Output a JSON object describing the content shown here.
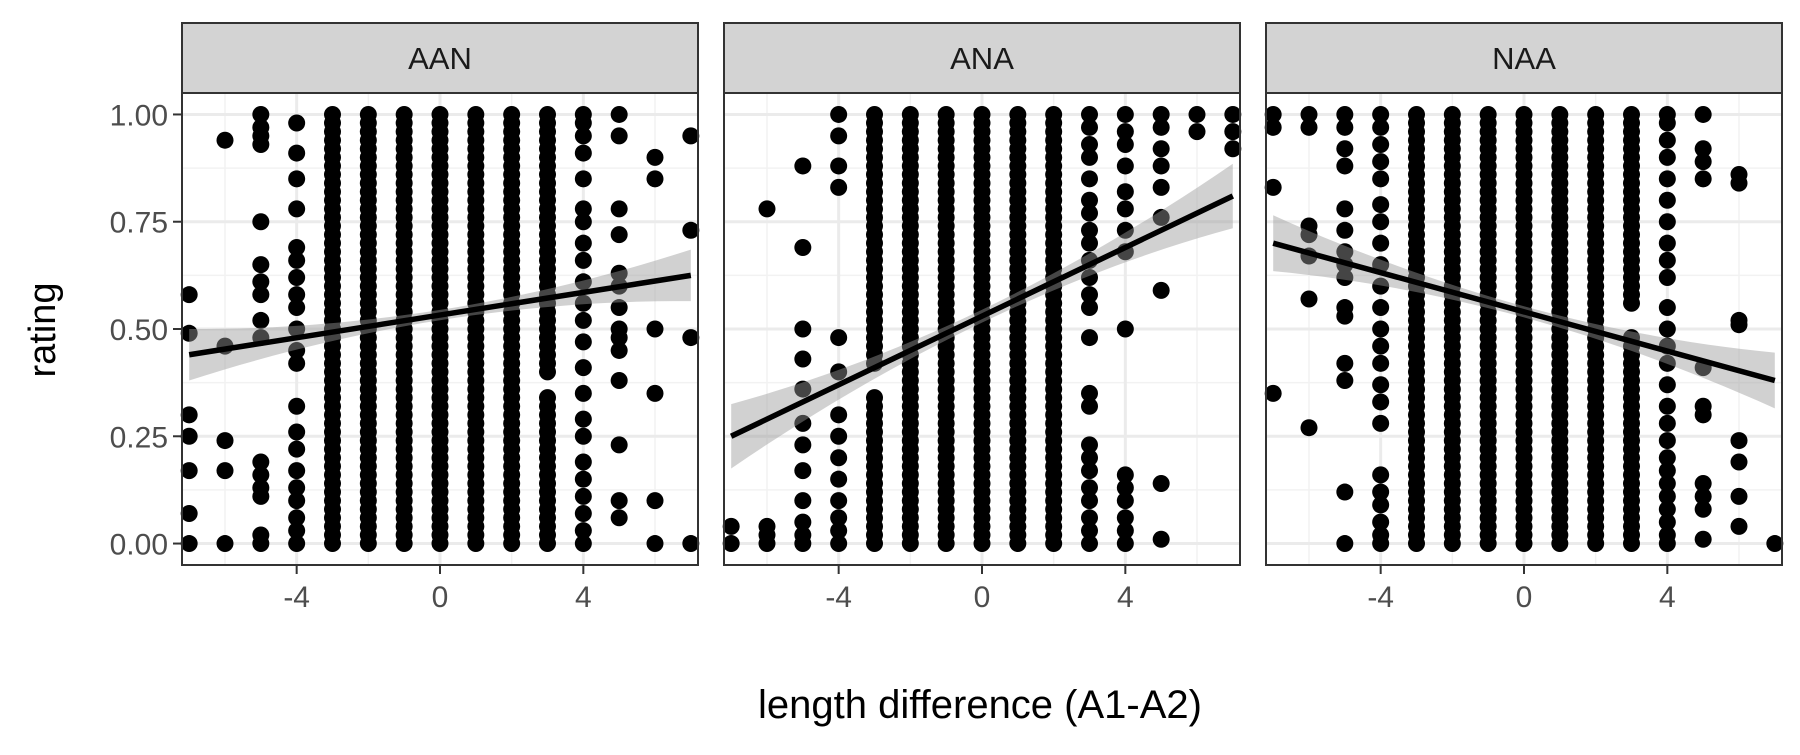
{
  "chart_data": {
    "type": "scatter",
    "facets": [
      "AAN",
      "ANA",
      "NAA"
    ],
    "xlabel": "length difference (A1-A2)",
    "ylabel": "rating",
    "xlim": [
      -7.2,
      7.2
    ],
    "ylim": [
      -0.05,
      1.05
    ],
    "x_ticks": [
      -4,
      0,
      4
    ],
    "x_tick_labels": [
      "-4",
      "0",
      "4"
    ],
    "y_ticks": [
      0,
      0.25,
      0.5,
      0.75,
      1.0
    ],
    "y_tick_labels": [
      "0.00",
      "0.25",
      "0.50",
      "0.75",
      "1.00"
    ],
    "grid": true,
    "point_color": "#000000",
    "line_color": "#000000",
    "ribbon_color": "#9a9a9a",
    "strip_color": "#d3d3d3",
    "panels": [
      {
        "name": "AAN",
        "fit": {
          "x": [
            -7,
            7
          ],
          "y": [
            0.44,
            0.625
          ]
        },
        "band_halfwidth": {
          "at_ends": 0.06,
          "at_center": 0.012
        },
        "points": [
          {
            "x": -7,
            "y": [
              0.0,
              0.07,
              0.17,
              0.25,
              0.3,
              0.49,
              0.58
            ]
          },
          {
            "x": -6,
            "y": [
              0.0,
              0.17,
              0.24,
              0.46,
              0.94
            ]
          },
          {
            "x": -5,
            "y": [
              0.0,
              0.02,
              0.11,
              0.13,
              0.16,
              0.19,
              0.48,
              0.52,
              0.58,
              0.61,
              0.65,
              0.75,
              0.93,
              0.95,
              0.97,
              1.0
            ]
          },
          {
            "x": -4,
            "y": [
              0.0,
              0.03,
              0.06,
              0.1,
              0.13,
              0.17,
              0.22,
              0.26,
              0.32,
              0.42,
              0.45,
              0.5,
              0.55,
              0.58,
              0.62,
              0.66,
              0.69,
              0.78,
              0.85,
              0.91,
              0.98
            ]
          },
          {
            "x": -3,
            "y_range": [
              0.0,
              1.0
            ],
            "dense": true
          },
          {
            "x": -2,
            "y_range": [
              0.0,
              1.0
            ],
            "dense": true
          },
          {
            "x": -1,
            "y_range": [
              0.0,
              1.0
            ],
            "dense": true
          },
          {
            "x": 0,
            "y_range": [
              0.0,
              1.0
            ],
            "dense": true
          },
          {
            "x": 1,
            "y_range": [
              0.0,
              1.0
            ],
            "dense": true
          },
          {
            "x": 2,
            "y_range": [
              0.0,
              1.0
            ],
            "dense": true
          },
          {
            "x": 3,
            "y_range": [
              0.0,
              1.0
            ],
            "dense": true,
            "gaps": [
              [
                0.34,
                0.4
              ]
            ]
          },
          {
            "x": 4,
            "y": [
              0.0,
              0.03,
              0.07,
              0.11,
              0.15,
              0.19,
              0.25,
              0.29,
              0.35,
              0.41,
              0.47,
              0.52,
              0.56,
              0.61,
              0.66,
              0.7,
              0.75,
              0.78,
              0.85,
              0.91,
              0.95,
              0.98,
              1.0
            ]
          },
          {
            "x": 5,
            "y": [
              0.06,
              0.1,
              0.23,
              0.38,
              0.45,
              0.48,
              0.5,
              0.55,
              0.6,
              0.63,
              0.72,
              0.78,
              0.95,
              1.0
            ]
          },
          {
            "x": 6,
            "y": [
              0.0,
              0.1,
              0.35,
              0.5,
              0.85,
              0.9
            ]
          },
          {
            "x": 7,
            "y": [
              0.0,
              0.48,
              0.73,
              0.95
            ]
          }
        ]
      },
      {
        "name": "ANA",
        "fit": {
          "x": [
            -7,
            7
          ],
          "y": [
            0.25,
            0.81
          ]
        },
        "band_halfwidth": {
          "at_ends": 0.075,
          "at_center": 0.015
        },
        "points": [
          {
            "x": -7,
            "y": [
              0.0,
              0.04
            ]
          },
          {
            "x": -6,
            "y": [
              0.0,
              0.02,
              0.04,
              0.78
            ]
          },
          {
            "x": -5,
            "y": [
              0.0,
              0.02,
              0.05,
              0.1,
              0.17,
              0.23,
              0.28,
              0.36,
              0.43,
              0.5,
              0.69,
              0.88
            ]
          },
          {
            "x": -4,
            "y": [
              0.0,
              0.03,
              0.06,
              0.1,
              0.15,
              0.2,
              0.25,
              0.3,
              0.4,
              0.48,
              0.83,
              0.88,
              0.95,
              1.0
            ]
          },
          {
            "x": -3,
            "y_range": [
              0.0,
              1.0
            ],
            "dense": true,
            "gaps": [
              [
                0.34,
                0.42
              ]
            ]
          },
          {
            "x": -2,
            "y_range": [
              0.0,
              1.0
            ],
            "dense": true
          },
          {
            "x": -1,
            "y_range": [
              0.0,
              1.0
            ],
            "dense": true
          },
          {
            "x": 0,
            "y_range": [
              0.0,
              1.0
            ],
            "dense": true
          },
          {
            "x": 1,
            "y_range": [
              0.0,
              1.0
            ],
            "dense": true
          },
          {
            "x": 2,
            "y_range": [
              0.0,
              1.0
            ],
            "dense": true
          },
          {
            "x": 3,
            "y": [
              0.0,
              0.03,
              0.06,
              0.1,
              0.13,
              0.17,
              0.2,
              0.23,
              0.32,
              0.35,
              0.48,
              0.55,
              0.58,
              0.62,
              0.66,
              0.7,
              0.73,
              0.77,
              0.8,
              0.85,
              0.9,
              0.93,
              0.97,
              1.0
            ]
          },
          {
            "x": 4,
            "y": [
              0.0,
              0.03,
              0.06,
              0.1,
              0.13,
              0.16,
              0.5,
              0.68,
              0.73,
              0.78,
              0.82,
              0.88,
              0.93,
              0.96,
              1.0
            ]
          },
          {
            "x": 5,
            "y": [
              0.01,
              0.14,
              0.59,
              0.76,
              0.83,
              0.88,
              0.92,
              0.97,
              1.0
            ]
          },
          {
            "x": 6,
            "y": [
              0.96,
              1.0
            ]
          },
          {
            "x": 7,
            "y": [
              0.92,
              0.96,
              1.0
            ]
          }
        ]
      },
      {
        "name": "NAA",
        "fit": {
          "x": [
            -7,
            7
          ],
          "y": [
            0.7,
            0.38
          ]
        },
        "band_halfwidth": {
          "at_ends": 0.065,
          "at_center": 0.013
        },
        "points": [
          {
            "x": -7,
            "y": [
              0.35,
              0.83,
              0.97,
              1.0
            ]
          },
          {
            "x": -6,
            "y": [
              0.27,
              0.57,
              0.67,
              0.72,
              0.74,
              0.97,
              1.0
            ]
          },
          {
            "x": -5,
            "y": [
              0.0,
              0.12,
              0.38,
              0.42,
              0.53,
              0.55,
              0.62,
              0.65,
              0.68,
              0.73,
              0.78,
              0.88,
              0.92,
              0.97,
              1.0
            ]
          },
          {
            "x": -4,
            "y": [
              0.0,
              0.02,
              0.05,
              0.09,
              0.12,
              0.16,
              0.28,
              0.33,
              0.37,
              0.42,
              0.46,
              0.5,
              0.55,
              0.6,
              0.65,
              0.7,
              0.75,
              0.79,
              0.85,
              0.89,
              0.93,
              0.97,
              1.0
            ]
          },
          {
            "x": -3,
            "y_range": [
              0.0,
              1.0
            ],
            "dense": true
          },
          {
            "x": -2,
            "y_range": [
              0.0,
              1.0
            ],
            "dense": true
          },
          {
            "x": -1,
            "y_range": [
              0.0,
              1.0
            ],
            "dense": true
          },
          {
            "x": 0,
            "y_range": [
              0.0,
              1.0
            ],
            "dense": true
          },
          {
            "x": 1,
            "y_range": [
              0.0,
              1.0
            ],
            "dense": true
          },
          {
            "x": 2,
            "y_range": [
              0.0,
              1.0
            ],
            "dense": true
          },
          {
            "x": 3,
            "y_range": [
              0.0,
              1.0
            ],
            "dense": true,
            "gaps": [
              [
                0.5,
                0.55
              ]
            ]
          },
          {
            "x": 4,
            "y": [
              0.0,
              0.02,
              0.05,
              0.08,
              0.11,
              0.14,
              0.17,
              0.2,
              0.24,
              0.28,
              0.32,
              0.37,
              0.42,
              0.46,
              0.5,
              0.55,
              0.62,
              0.66,
              0.7,
              0.75,
              0.8,
              0.85,
              0.9,
              0.94,
              0.98,
              1.0
            ]
          },
          {
            "x": 5,
            "y": [
              0.01,
              0.08,
              0.11,
              0.14,
              0.3,
              0.32,
              0.41,
              0.85,
              0.89,
              0.92,
              1.0
            ]
          },
          {
            "x": 6,
            "y": [
              0.04,
              0.11,
              0.19,
              0.24,
              0.51,
              0.52,
              0.84,
              0.86
            ]
          },
          {
            "x": 7,
            "y": [
              0.0
            ]
          }
        ]
      }
    ]
  }
}
